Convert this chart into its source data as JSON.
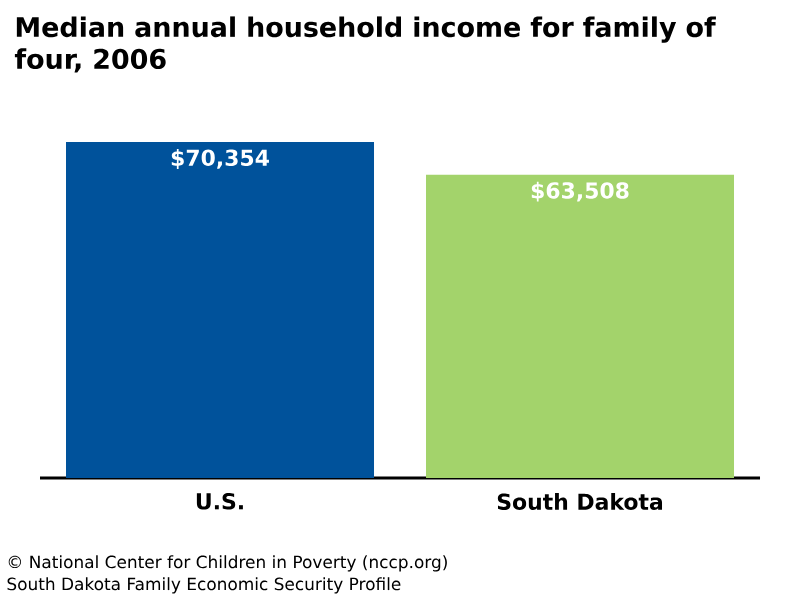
{
  "chart_data": {
    "type": "bar",
    "title": "Median annual household income for family of four, 2006",
    "categories": [
      "U.S.",
      "South Dakota"
    ],
    "values": [
      70354,
      63508
    ],
    "colors": [
      "#00529b",
      "#a3d36b"
    ],
    "value_labels": [
      "$70,354",
      "$63,508"
    ],
    "relative": false,
    "annotations": [
      "© National Center for Children in Poverty (nccp.org)",
      "South Dakota Family Economic Security Profile"
    ]
  }
}
